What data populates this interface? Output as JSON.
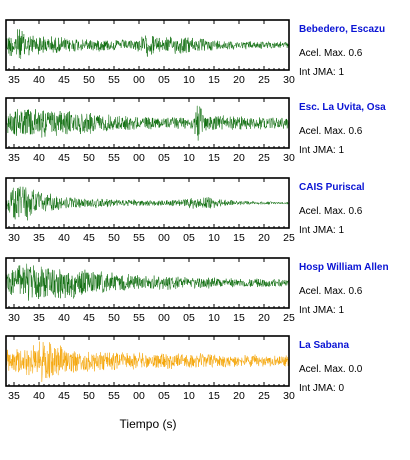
{
  "chart_data": {
    "type": "line",
    "xlabel": "Tiempo (s)",
    "ylabel": "",
    "title": "",
    "grid": false,
    "panels": [
      {
        "station": "Bebedero, Escazu",
        "accel_label": "Acel. Max. 0.6",
        "intensity_label": "Int JMA: 1",
        "color": "#0a6b0a",
        "tick_labels": [
          "35",
          "40",
          "45",
          "50",
          "55",
          "00",
          "05",
          "10",
          "15",
          "20",
          "25",
          "30"
        ],
        "envelope": [
          [
            0,
            0.42
          ],
          [
            0.04,
            0.9
          ],
          [
            0.08,
            0.55
          ],
          [
            0.15,
            0.42
          ],
          [
            0.3,
            0.3
          ],
          [
            0.45,
            0.25
          ],
          [
            0.5,
            0.55
          ],
          [
            0.55,
            0.35
          ],
          [
            0.62,
            0.45
          ],
          [
            0.7,
            0.3
          ],
          [
            0.8,
            0.22
          ],
          [
            0.9,
            0.18
          ],
          [
            1.0,
            0.15
          ]
        ]
      },
      {
        "station": "Esc. La Uvita, Osa",
        "accel_label": "Acel. Max. 0.6",
        "intensity_label": "Int JMA: 1",
        "color": "#0a6b0a",
        "tick_labels": [
          "35",
          "40",
          "45",
          "50",
          "55",
          "00",
          "05",
          "10",
          "15",
          "20",
          "25",
          "30"
        ],
        "envelope": [
          [
            0,
            0.55
          ],
          [
            0.05,
            0.7
          ],
          [
            0.1,
            0.75
          ],
          [
            0.2,
            0.6
          ],
          [
            0.3,
            0.5
          ],
          [
            0.4,
            0.35
          ],
          [
            0.5,
            0.3
          ],
          [
            0.6,
            0.32
          ],
          [
            0.66,
            0.35
          ],
          [
            0.68,
            0.95
          ],
          [
            0.7,
            0.45
          ],
          [
            0.8,
            0.35
          ],
          [
            0.9,
            0.3
          ],
          [
            1.0,
            0.3
          ]
        ]
      },
      {
        "station": "CAIS Puriscal",
        "accel_label": "Acel. Max. 0.6",
        "intensity_label": "Int JMA: 1",
        "color": "#0a6b0a",
        "tick_labels": [
          "30",
          "35",
          "40",
          "45",
          "50",
          "55",
          "00",
          "05",
          "10",
          "15",
          "20",
          "25"
        ],
        "envelope": [
          [
            0,
            0.35
          ],
          [
            0.03,
            0.95
          ],
          [
            0.07,
            0.85
          ],
          [
            0.12,
            0.55
          ],
          [
            0.2,
            0.3
          ],
          [
            0.35,
            0.2
          ],
          [
            0.5,
            0.15
          ],
          [
            0.6,
            0.15
          ],
          [
            0.68,
            0.3
          ],
          [
            0.75,
            0.25
          ],
          [
            0.8,
            0.12
          ],
          [
            0.9,
            0.08
          ],
          [
            1.0,
            0.06
          ]
        ]
      },
      {
        "station": "Hosp William Allen",
        "accel_label": "Acel. Max. 0.6",
        "intensity_label": "Int JMA: 1",
        "color": "#0a6b0a",
        "tick_labels": [
          "30",
          "35",
          "40",
          "45",
          "50",
          "55",
          "00",
          "05",
          "10",
          "15",
          "20",
          "25"
        ],
        "envelope": [
          [
            0,
            0.55
          ],
          [
            0.05,
            0.85
          ],
          [
            0.1,
            0.95
          ],
          [
            0.15,
            0.85
          ],
          [
            0.25,
            0.7
          ],
          [
            0.35,
            0.5
          ],
          [
            0.45,
            0.4
          ],
          [
            0.55,
            0.35
          ],
          [
            0.65,
            0.3
          ],
          [
            0.75,
            0.25
          ],
          [
            0.85,
            0.22
          ],
          [
            1.0,
            0.2
          ]
        ]
      },
      {
        "station": "La Sabana",
        "accel_label": "Acel. Max. 0.0",
        "intensity_label": "Int JMA: 0",
        "color": "#f5a300",
        "tick_labels": [
          "35",
          "40",
          "45",
          "50",
          "55",
          "00",
          "05",
          "10",
          "15",
          "20",
          "25",
          "30"
        ],
        "envelope": [
          [
            0,
            0.5
          ],
          [
            0.05,
            0.7
          ],
          [
            0.1,
            0.85
          ],
          [
            0.14,
            0.95
          ],
          [
            0.2,
            0.7
          ],
          [
            0.3,
            0.5
          ],
          [
            0.4,
            0.42
          ],
          [
            0.5,
            0.38
          ],
          [
            0.6,
            0.36
          ],
          [
            0.7,
            0.34
          ],
          [
            0.8,
            0.3
          ],
          [
            0.9,
            0.28
          ],
          [
            1.0,
            0.26
          ]
        ]
      }
    ]
  }
}
